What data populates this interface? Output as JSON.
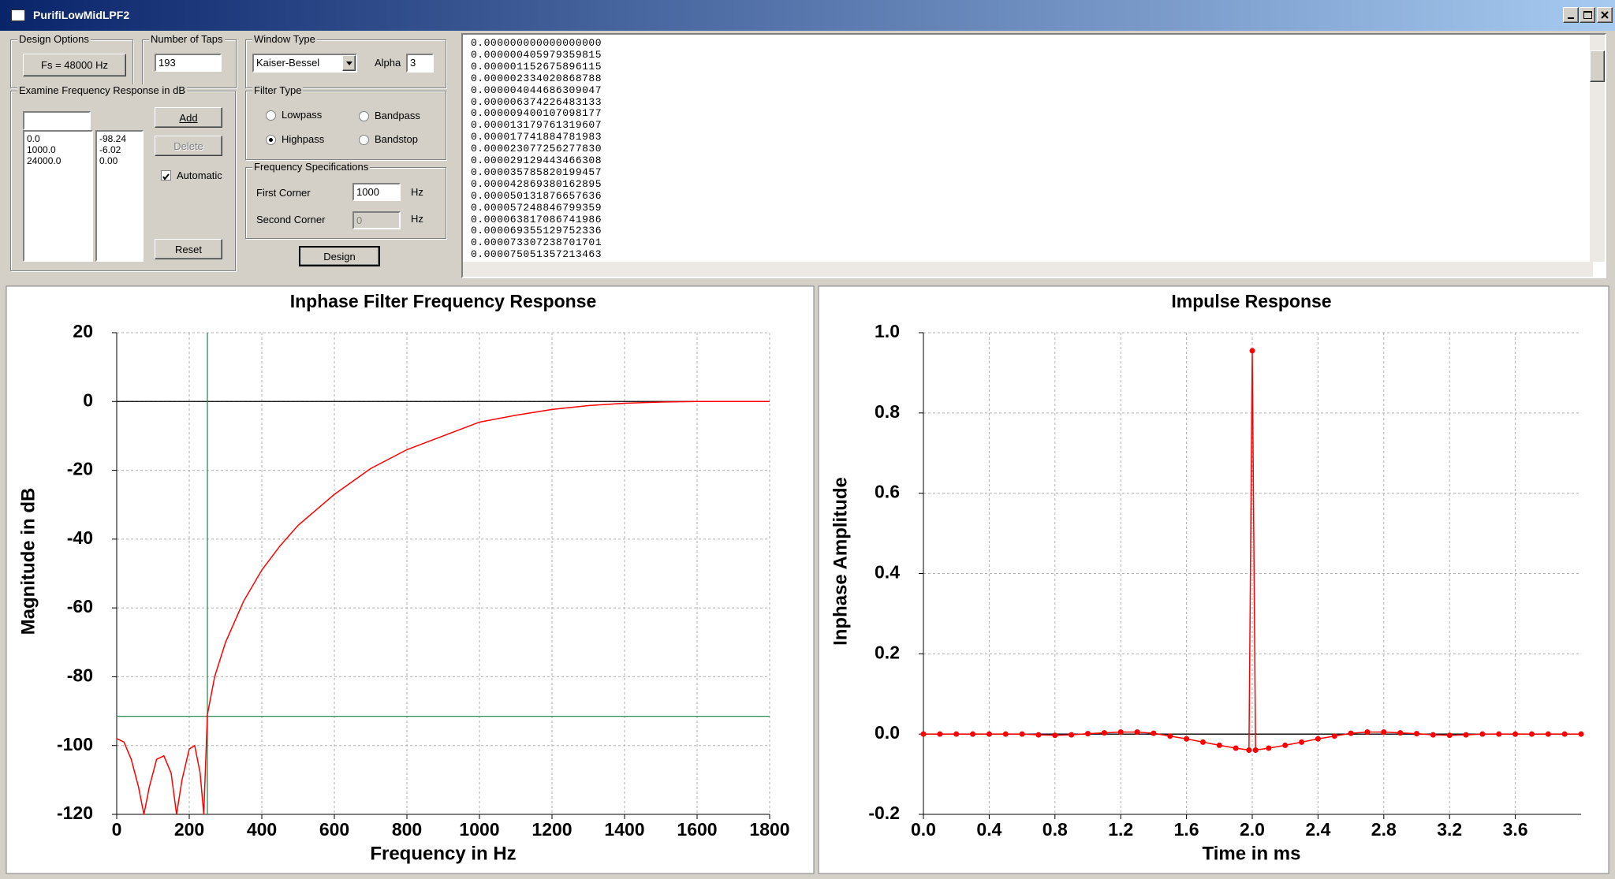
{
  "window": {
    "title": "PurifiLowMidLPF2"
  },
  "design_options": {
    "label": "Design Options",
    "button": "Fs = 48000 Hz"
  },
  "taps": {
    "label": "Number of Taps",
    "value": "193"
  },
  "window_type": {
    "label": "Window Type",
    "value": "Kaiser-Bessel",
    "alpha_label": "Alpha",
    "alpha": "3"
  },
  "examine": {
    "label": "Examine Frequency Response in dB",
    "frequencies": [
      "0.0",
      "1000.0",
      "24000.0"
    ],
    "responses": [
      "-98.24",
      "-6.02",
      "0.00"
    ],
    "add": "Add",
    "delete": {
      "label": "Delete",
      "enabled": false
    },
    "automatic": {
      "label": "Automatic",
      "checked": true
    },
    "reset": "Reset"
  },
  "filter_type": {
    "label": "Filter Type",
    "options": [
      {
        "label": "Lowpass",
        "checked": false
      },
      {
        "label": "Bandpass",
        "checked": false
      },
      {
        "label": "Highpass",
        "checked": true
      },
      {
        "label": "Bandstop",
        "checked": false
      }
    ]
  },
  "frequency_specifications": {
    "label": "Frequency Specifications",
    "first_label": "First Corner",
    "first": "1000",
    "second_label": "Second Corner",
    "second": "0",
    "unit": "Hz"
  },
  "design_button": "Design",
  "coefficients": [
    "0.000000000000000000",
    "0.000000405979359815",
    "0.000001152675896115",
    "0.000002334020868788",
    "0.000004044686309047",
    "0.000006374226483133",
    "0.000009400107098177",
    "0.000013179761319607",
    "0.000017741884781983",
    "0.000023077256277830",
    "0.000029129443466308",
    "0.000035785820199457",
    "0.000042869380162895",
    "0.000050131876657636",
    "0.000057248846799359",
    "0.000063817086741986",
    "0.000069355129752336",
    "0.000073307238701701",
    "0.000075051357213463"
  ],
  "chart_data": [
    {
      "type": "line",
      "title": "Inphase Filter Frequency Response",
      "x_label": "Frequency in Hz",
      "y_label": "Magnitude in dB",
      "x": [
        0,
        20,
        40,
        60,
        75,
        90,
        110,
        130,
        150,
        165,
        180,
        200,
        215,
        230,
        240,
        250,
        270,
        300,
        350,
        400,
        450,
        500,
        600,
        700,
        800,
        900,
        1000,
        1100,
        1200,
        1300,
        1400,
        1500,
        1600,
        1700,
        1800
      ],
      "series": [
        {
          "color": "#ff0000",
          "values": [
            -98,
            -99,
            -104,
            -112,
            -120,
            -112,
            -104,
            -103,
            -108,
            -120,
            -110,
            -101,
            -100,
            -108,
            -120,
            -91,
            -80,
            -70,
            -58,
            -49,
            -42,
            -36,
            -27,
            -19.5,
            -14,
            -10,
            -6,
            -4,
            -2.3,
            -1.2,
            -0.5,
            -0.15,
            0,
            0,
            0
          ]
        }
      ],
      "xlim": [
        0,
        1800
      ],
      "xticks": [
        0,
        200,
        400,
        600,
        800,
        1000,
        1200,
        1400,
        1600,
        1800
      ],
      "ylim": [
        -120,
        20
      ],
      "yticks": [
        -120,
        -100,
        -80,
        -60,
        -40,
        -20,
        0,
        20
      ],
      "grid": true,
      "zero_line": true,
      "markers": false,
      "cursor": {
        "x": 250,
        "y": -91.5,
        "color": "#2e8b57"
      }
    },
    {
      "type": "line",
      "title": "Impulse Response",
      "x_label": "Time in ms",
      "y_label": "Inphase Amplitude",
      "x": [
        0,
        0.1,
        0.2,
        0.3,
        0.4,
        0.5,
        0.6,
        0.7,
        0.8,
        0.9,
        1.0,
        1.1,
        1.2,
        1.3,
        1.4,
        1.5,
        1.6,
        1.7,
        1.8,
        1.9,
        1.98,
        2.0,
        2.02,
        2.1,
        2.2,
        2.3,
        2.4,
        2.5,
        2.6,
        2.7,
        2.8,
        2.9,
        3.0,
        3.1,
        3.2,
        3.3,
        3.4,
        3.5,
        3.6,
        3.7,
        3.8,
        3.9,
        4.0
      ],
      "series": [
        {
          "color": "#ff0000",
          "values": [
            0,
            0,
            0,
            0,
            0,
            0,
            0,
            -0.002,
            -0.003,
            -0.002,
            0.001,
            0.003,
            0.005,
            0.005,
            0.002,
            -0.005,
            -0.012,
            -0.02,
            -0.028,
            -0.035,
            -0.04,
            0.955,
            -0.04,
            -0.035,
            -0.028,
            -0.02,
            -0.012,
            -0.005,
            0.002,
            0.005,
            0.005,
            0.003,
            0.001,
            -0.002,
            -0.003,
            -0.002,
            0,
            0,
            0,
            0,
            0,
            0,
            0
          ]
        }
      ],
      "xlim": [
        0,
        4.0
      ],
      "xticks": [
        {
          "value": 0,
          "label": "0.0"
        },
        0.4,
        0.8,
        1.2,
        1.6,
        {
          "value": 2,
          "label": "2.0"
        },
        2.4,
        2.8,
        3.2,
        3.6
      ],
      "ylim": [
        -0.2,
        1.0
      ],
      "yticks": [
        -0.2,
        {
          "value": 0,
          "label": "0.0"
        },
        0.2,
        0.4,
        0.6,
        0.8,
        {
          "value": 1,
          "label": "1.0"
        }
      ],
      "grid": true,
      "zero_line": true,
      "markers": true
    }
  ]
}
